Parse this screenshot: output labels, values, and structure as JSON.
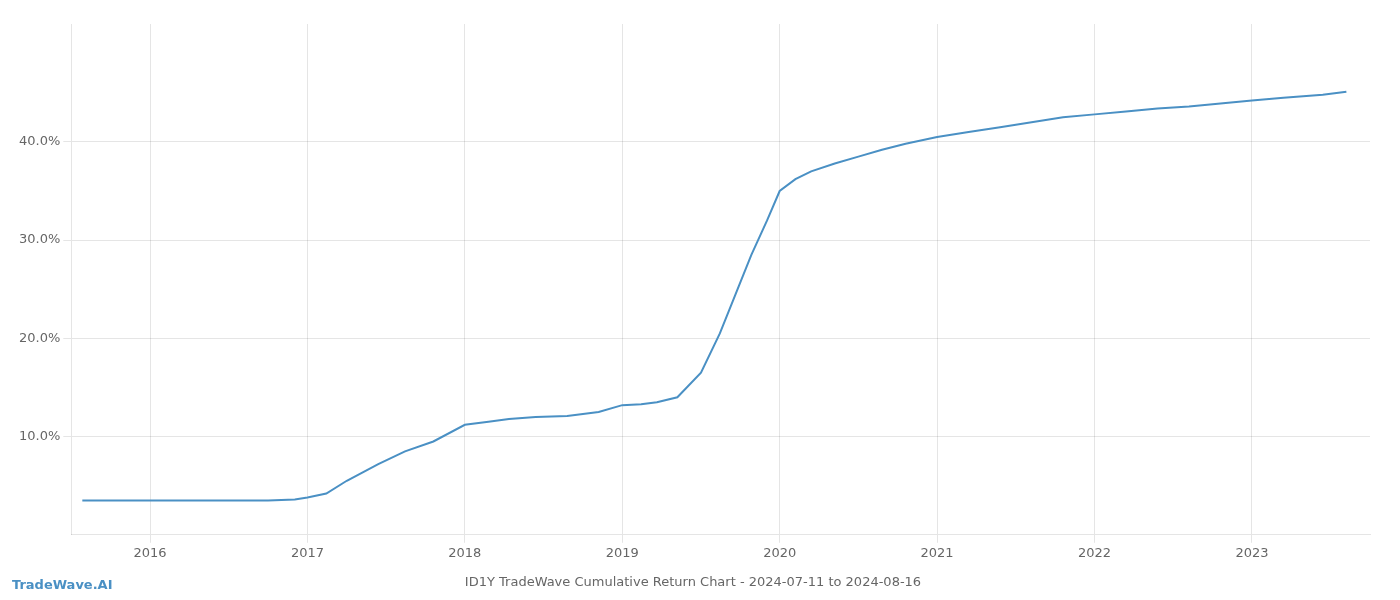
{
  "chart_data": {
    "type": "line",
    "title": "ID1Y TradeWave Cumulative Return Chart - 2024-07-11 to 2024-08-16",
    "annotations": [
      "TradeWave.AI"
    ],
    "x": [
      2015.57,
      2015.7,
      2015.85,
      2016.0,
      2016.15,
      2016.35,
      2016.55,
      2016.75,
      2016.92,
      2017.0,
      2017.12,
      2017.25,
      2017.45,
      2017.62,
      2017.8,
      2018.0,
      2018.15,
      2018.28,
      2018.45,
      2018.65,
      2018.85,
      2019.0,
      2019.12,
      2019.22,
      2019.35,
      2019.5,
      2019.62,
      2019.72,
      2019.82,
      2019.92,
      2020.0,
      2020.1,
      2020.2,
      2020.35,
      2020.5,
      2020.65,
      2020.8,
      2021.0,
      2021.2,
      2021.4,
      2021.6,
      2021.8,
      2022.0,
      2022.2,
      2022.4,
      2022.6,
      2022.8,
      2023.0,
      2023.2,
      2023.45,
      2023.6
    ],
    "values": [
      3.5,
      3.5,
      3.5,
      3.5,
      3.5,
      3.5,
      3.5,
      3.5,
      3.6,
      3.8,
      4.2,
      5.5,
      7.2,
      8.5,
      9.5,
      11.2,
      11.5,
      11.8,
      12.0,
      12.1,
      12.5,
      13.2,
      13.3,
      13.5,
      14.0,
      16.5,
      20.5,
      24.5,
      28.5,
      32.0,
      35.0,
      36.2,
      37.0,
      37.8,
      38.5,
      39.2,
      39.8,
      40.5,
      41.0,
      41.5,
      42.0,
      42.5,
      42.8,
      43.1,
      43.4,
      43.6,
      43.9,
      44.2,
      44.5,
      44.8,
      45.1
    ],
    "color": "#4a90c4",
    "xlim": [
      2015.5,
      2023.75
    ],
    "xticks": [
      2016,
      2017,
      2018,
      2019,
      2020,
      2021,
      2022,
      2023
    ],
    "ylim": [
      0,
      52
    ],
    "yticks": [
      {
        "value": 10,
        "label": "10.0%"
      },
      {
        "value": 20,
        "label": "20.0%"
      },
      {
        "value": 30,
        "label": "30.0%"
      },
      {
        "value": 40,
        "label": "40.0%"
      }
    ],
    "grid": true
  }
}
